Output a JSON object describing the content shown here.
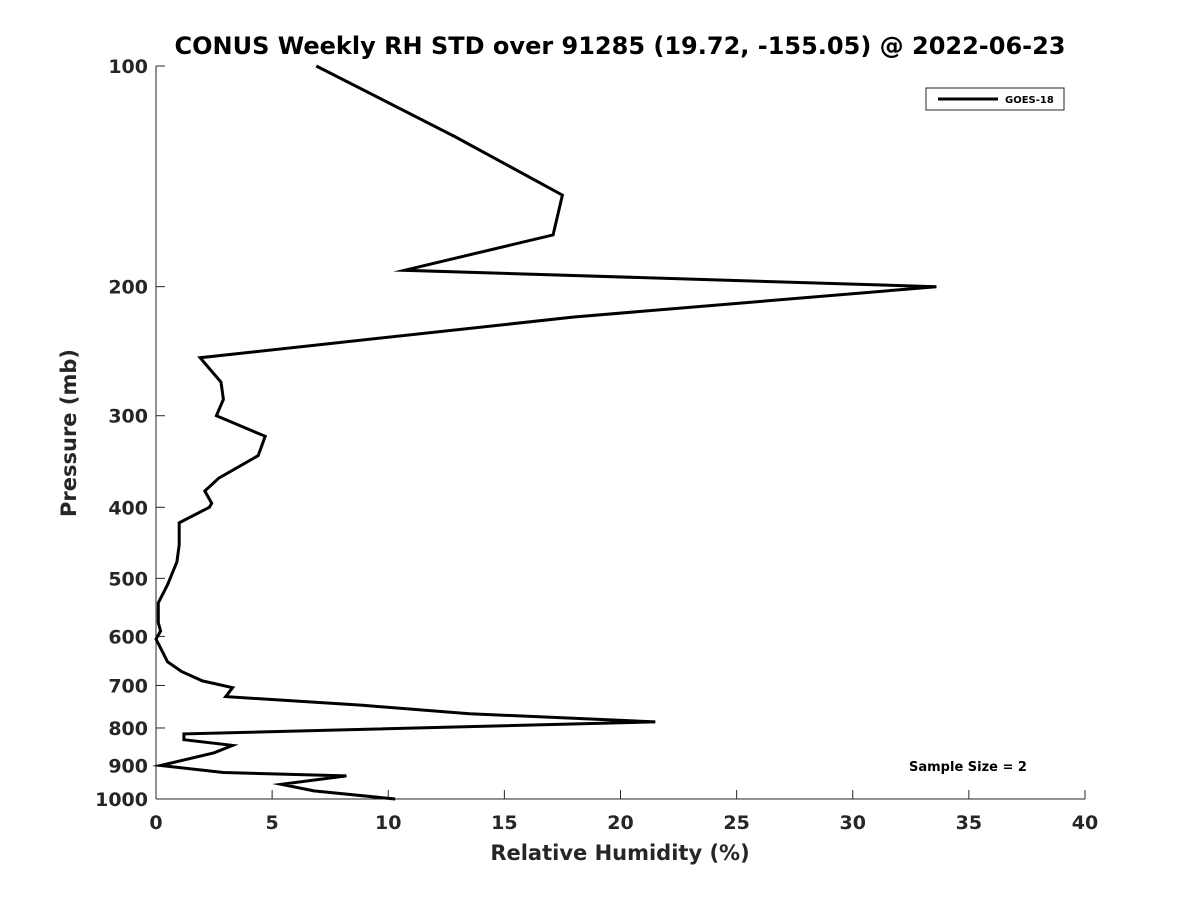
{
  "chart_data": {
    "type": "line",
    "title": "CONUS Weekly RH STD over 91285 (19.72, -155.05) @ 2022-06-23",
    "xlabel": "Relative Humidity (%)",
    "ylabel": "Pressure (mb)",
    "xlim": [
      0,
      40
    ],
    "ylim": [
      100,
      1000
    ],
    "yscale": "log",
    "yreversed": true,
    "grid": false,
    "legend_location": "top-right",
    "x_ticks": [
      0,
      5,
      10,
      15,
      20,
      25,
      30,
      35,
      40
    ],
    "y_ticks": [
      100,
      200,
      300,
      400,
      500,
      600,
      700,
      800,
      900,
      1000
    ],
    "annotation": "Sample Size = 2",
    "series": [
      {
        "name": "GOES-18",
        "color": "#000000",
        "points": [
          [
            6.9,
            100
          ],
          [
            12.9,
            125
          ],
          [
            17.5,
            150
          ],
          [
            17.1,
            170
          ],
          [
            10.7,
            190
          ],
          [
            33.6,
            200
          ],
          [
            18.0,
            220
          ],
          [
            1.9,
            250
          ],
          [
            2.8,
            270
          ],
          [
            2.9,
            285
          ],
          [
            2.6,
            300
          ],
          [
            4.7,
            320
          ],
          [
            4.4,
            340
          ],
          [
            2.7,
            365
          ],
          [
            2.1,
            380
          ],
          [
            2.4,
            395
          ],
          [
            2.3,
            400
          ],
          [
            1.0,
            420
          ],
          [
            1.0,
            450
          ],
          [
            0.9,
            475
          ],
          [
            0.5,
            510
          ],
          [
            0.1,
            540
          ],
          [
            0.1,
            575
          ],
          [
            0.2,
            590
          ],
          [
            0.0,
            605
          ],
          [
            0.5,
            650
          ],
          [
            1.1,
            670
          ],
          [
            2.0,
            690
          ],
          [
            3.3,
            705
          ],
          [
            3.0,
            725
          ],
          [
            8.9,
            745
          ],
          [
            13.5,
            765
          ],
          [
            21.5,
            785
          ],
          [
            1.2,
            815
          ],
          [
            1.2,
            830
          ],
          [
            3.3,
            845
          ],
          [
            2.5,
            865
          ],
          [
            0.2,
            900
          ],
          [
            2.9,
            920
          ],
          [
            8.2,
            930
          ],
          [
            5.4,
            955
          ],
          [
            6.8,
            975
          ],
          [
            10.3,
            1000
          ]
        ]
      }
    ]
  }
}
